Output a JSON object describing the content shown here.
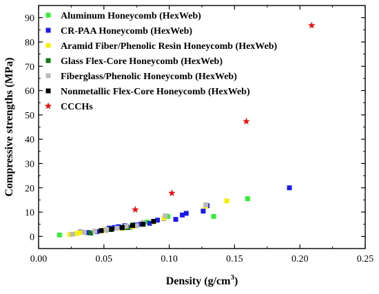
{
  "chart_data": {
    "type": "scatter",
    "xlabel": "Density (g/cm",
    "xlabel_sup": "3",
    "xlabel_end": ")",
    "ylabel": "Compressive strengths (MPa)",
    "xlim": [
      0.0,
      0.25
    ],
    "ylim": [
      -5,
      95
    ],
    "xticks": [
      "0.00",
      "0.05",
      "0.10",
      "0.15",
      "0.20",
      "0.25"
    ],
    "yticks": [
      "0",
      "10",
      "20",
      "30",
      "40",
      "50",
      "60",
      "70",
      "80",
      "90"
    ],
    "xtick_values": [
      0.0,
      0.05,
      0.1,
      0.15,
      0.2,
      0.25
    ],
    "ytick_values": [
      0,
      10,
      20,
      30,
      40,
      50,
      60,
      70,
      80,
      90
    ],
    "grid": false,
    "legend_position": "top-left",
    "series": [
      {
        "name": "Aluminum Honeycomb (HexWeb)",
        "color": "#33ee33",
        "marker": "square",
        "points": [
          [
            0.016,
            0.6
          ],
          [
            0.037,
            1.5
          ],
          [
            0.048,
            2.4
          ],
          [
            0.056,
            3.1
          ],
          [
            0.064,
            3.8
          ],
          [
            0.072,
            4.8
          ],
          [
            0.083,
            5.9
          ],
          [
            0.099,
            8.2
          ],
          [
            0.128,
            12.8
          ],
          [
            0.134,
            8.2
          ],
          [
            0.16,
            15.5
          ]
        ]
      },
      {
        "name": "CR-PAA Honeycomb (HexWeb)",
        "color": "#1a1aee",
        "marker": "square",
        "points": [
          [
            0.032,
            1.8
          ],
          [
            0.038,
            1.6
          ],
          [
            0.045,
            2.0
          ],
          [
            0.051,
            2.6
          ],
          [
            0.054,
            3.4
          ],
          [
            0.058,
            3.7
          ],
          [
            0.061,
            4.0
          ],
          [
            0.066,
            4.4
          ],
          [
            0.07,
            3.8
          ],
          [
            0.074,
            4.7
          ],
          [
            0.078,
            5.0
          ],
          [
            0.085,
            5.4
          ],
          [
            0.091,
            6.7
          ],
          [
            0.096,
            7.4
          ],
          [
            0.105,
            7.0
          ],
          [
            0.11,
            8.8
          ],
          [
            0.113,
            9.5
          ],
          [
            0.126,
            10.4
          ],
          [
            0.129,
            12.6
          ],
          [
            0.192,
            20.0
          ]
        ]
      },
      {
        "name": "Aramid Fiber/Phenolic Resin Honeycomb (HexWeb)",
        "color": "#f5f000",
        "marker": "square",
        "points": [
          [
            0.024,
            0.8
          ],
          [
            0.029,
            1.2
          ],
          [
            0.032,
            1.6
          ],
          [
            0.048,
            2.2
          ],
          [
            0.05,
            2.6
          ],
          [
            0.064,
            3.3
          ],
          [
            0.072,
            4.0
          ],
          [
            0.08,
            5.0
          ],
          [
            0.088,
            6.0
          ],
          [
            0.096,
            7.5
          ],
          [
            0.128,
            12.4
          ],
          [
            0.144,
            14.6
          ]
        ]
      },
      {
        "name": "Glass Flex-Core Honeycomb (HexWeb)",
        "color": "#117711",
        "marker": "square",
        "points": [
          [
            0.04,
            1.4
          ],
          [
            0.055,
            2.8
          ],
          [
            0.068,
            3.6
          ]
        ]
      },
      {
        "name": "Fiberglass/Phenolic Honeycomb (HexWeb)",
        "color": "#bbbbbb",
        "marker": "square",
        "points": [
          [
            0.026,
            0.9
          ],
          [
            0.035,
            1.7
          ],
          [
            0.043,
            2.2
          ],
          [
            0.052,
            2.9
          ],
          [
            0.06,
            3.4
          ],
          [
            0.067,
            4.2
          ],
          [
            0.075,
            4.4
          ],
          [
            0.08,
            5.8
          ],
          [
            0.097,
            8.5
          ],
          [
            0.128,
            13.0
          ]
        ]
      },
      {
        "name": "Nonmetallic Flex-Core Honeycomb (HexWeb)",
        "color": "#000000",
        "marker": "square",
        "points": [
          [
            0.048,
            2.4
          ],
          [
            0.056,
            3.0
          ],
          [
            0.064,
            3.6
          ],
          [
            0.072,
            4.5
          ],
          [
            0.08,
            5.0
          ],
          [
            0.088,
            6.2
          ]
        ]
      },
      {
        "name": "CCCHs",
        "color": "#ee1111",
        "marker": "star",
        "points": [
          [
            0.074,
            11.0
          ],
          [
            0.102,
            17.8
          ],
          [
            0.159,
            47.3
          ],
          [
            0.209,
            86.8
          ]
        ]
      }
    ]
  }
}
